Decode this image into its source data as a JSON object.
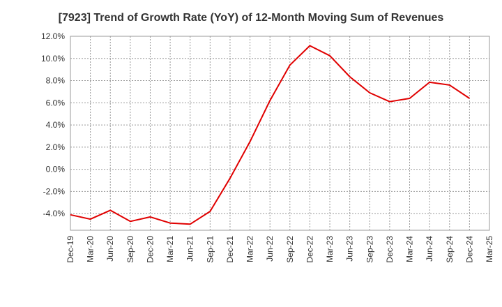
{
  "chart_data": {
    "type": "line",
    "title": "[7923]  Trend of Growth Rate (YoY) of 12-Month Moving Sum of Revenues",
    "xlabel": "",
    "ylabel": "",
    "x_tick_labels": [
      "Dec-19",
      "Mar-20",
      "Jun-20",
      "Sep-20",
      "Dec-20",
      "Mar-21",
      "Jun-21",
      "Sep-21",
      "Dec-21",
      "Mar-22",
      "Jun-22",
      "Sep-22",
      "Dec-22",
      "Mar-23",
      "Jun-23",
      "Sep-23",
      "Dec-23",
      "Mar-24",
      "Jun-24",
      "Sep-24",
      "Dec-24",
      "Mar-25"
    ],
    "y_tick_labels": [
      "12.0%",
      "10.0%",
      "8.0%",
      "6.0%",
      "4.0%",
      "2.0%",
      "0.0%",
      "-2.0%",
      "-4.0%"
    ],
    "ylim": [
      -5.5,
      12.0
    ],
    "y_ticks": [
      12,
      10,
      8,
      6,
      4,
      2,
      0,
      -2,
      -4
    ],
    "grid": true,
    "series": [
      {
        "color": "#e00000",
        "x": [
          "Dec-19",
          "Mar-20",
          "Jun-20",
          "Sep-20",
          "Dec-20",
          "Mar-21",
          "Jun-21",
          "Sep-21",
          "Dec-21",
          "Mar-22",
          "Jun-22",
          "Sep-22",
          "Dec-22",
          "Mar-23",
          "Jun-23",
          "Sep-23",
          "Dec-23",
          "Mar-24",
          "Jun-24",
          "Sep-24",
          "Dec-24"
        ],
        "values": [
          -4.1,
          -4.5,
          -3.7,
          -4.7,
          -4.3,
          -4.85,
          -4.95,
          -3.8,
          -0.8,
          2.5,
          6.2,
          9.4,
          11.15,
          10.25,
          8.35,
          6.9,
          6.1,
          6.4,
          7.85,
          7.6,
          6.4
        ]
      }
    ]
  }
}
